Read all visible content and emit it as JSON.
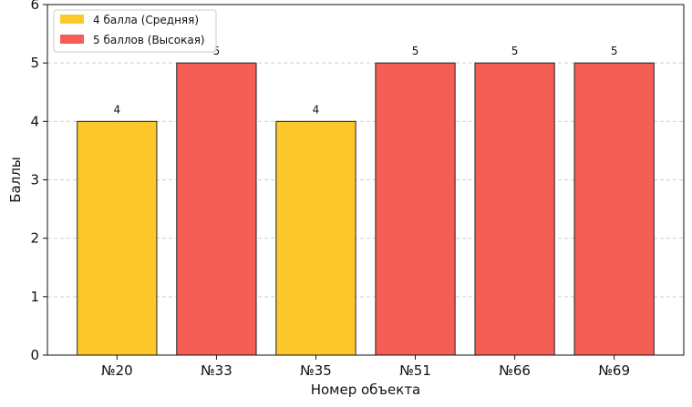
{
  "chart_data": {
    "type": "bar",
    "categories": [
      "№20",
      "№33",
      "№35",
      "№51",
      "№66",
      "№69"
    ],
    "values": [
      4,
      5,
      4,
      5,
      5,
      5
    ],
    "value_labels": [
      "4",
      "5",
      "4",
      "5",
      "5",
      "5"
    ],
    "bar_series": [
      0,
      1,
      0,
      1,
      1,
      1
    ],
    "xlabel": "Номер объекта",
    "ylabel": "Баллы",
    "ylim": [
      0,
      6
    ],
    "yticks": [
      "0",
      "1",
      "2",
      "3",
      "4",
      "5",
      "6"
    ],
    "grid": true,
    "legend_position": "top-left",
    "series": [
      {
        "name": "4 балла (Средняя)",
        "color": "#fdc82c"
      },
      {
        "name": "5 баллов (Высокая)",
        "color": "#f55e55"
      }
    ]
  }
}
